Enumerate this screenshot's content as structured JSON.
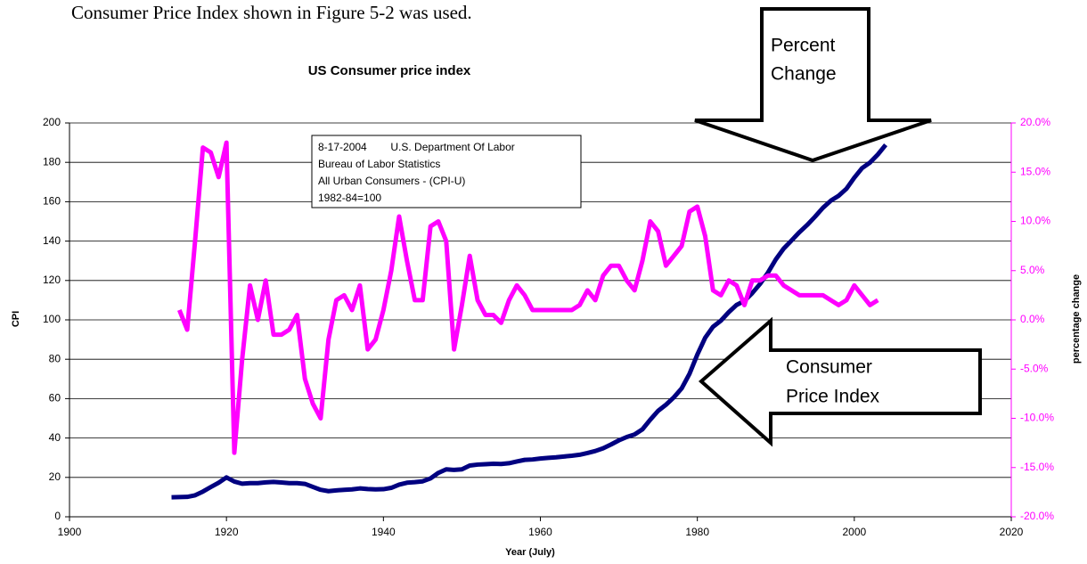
{
  "chart_data": {
    "type": "line",
    "note": "Consumer Price Index shown in Figure 5-2 was used.",
    "title": "US Consumer price index",
    "xlabel": "Year (July)",
    "ylabel": "CPI",
    "y2label": "percentage change",
    "source_lines": [
      "8-17-2004        U.S. Department Of Labor",
      "Bureau of Labor Statistics",
      "All Urban Consumers - (CPI-U)",
      "1982-84=100"
    ],
    "annotations": [
      {
        "lines": [
          "Percent",
          "Change"
        ]
      },
      {
        "lines": [
          "Consumer",
          "Price Index"
        ]
      }
    ],
    "xlim": [
      1900,
      2020
    ],
    "xticks": [
      1900,
      1920,
      1940,
      1960,
      1980,
      2000,
      2020
    ],
    "ylim": [
      0,
      200
    ],
    "yticks": [
      0,
      20,
      40,
      60,
      80,
      100,
      120,
      140,
      160,
      180,
      200
    ],
    "y2lim": [
      -20,
      20
    ],
    "y2ticks": [
      {
        "value": -20,
        "label": "-20.0%"
      },
      {
        "value": -15,
        "label": "-15.0%"
      },
      {
        "value": -10,
        "label": "-10.0%"
      },
      {
        "value": -5,
        "label": "-5.0%"
      },
      {
        "value": 0,
        "label": "0.0%"
      },
      {
        "value": 5,
        "label": "5.0%"
      },
      {
        "value": 10,
        "label": "10.0%"
      },
      {
        "value": 15,
        "label": "15.0%"
      },
      {
        "value": 20,
        "label": "20.0%"
      }
    ],
    "grid": true,
    "x": [
      1913,
      1914,
      1915,
      1916,
      1917,
      1918,
      1919,
      1920,
      1921,
      1922,
      1923,
      1924,
      1925,
      1926,
      1927,
      1928,
      1929,
      1930,
      1931,
      1932,
      1933,
      1934,
      1935,
      1936,
      1937,
      1938,
      1939,
      1940,
      1941,
      1942,
      1943,
      1944,
      1945,
      1946,
      1947,
      1948,
      1949,
      1950,
      1951,
      1952,
      1953,
      1954,
      1955,
      1956,
      1957,
      1958,
      1959,
      1960,
      1961,
      1962,
      1963,
      1964,
      1965,
      1966,
      1967,
      1968,
      1969,
      1970,
      1971,
      1972,
      1973,
      1974,
      1975,
      1976,
      1977,
      1978,
      1979,
      1980,
      1981,
      1982,
      1983,
      1984,
      1985,
      1986,
      1987,
      1988,
      1989,
      1990,
      1991,
      1992,
      1993,
      1994,
      1995,
      1996,
      1997,
      1998,
      1999,
      2000,
      2001,
      2002,
      2003,
      2004
    ],
    "series": [
      {
        "color": "#000080",
        "axis": "y",
        "values": [
          9.9,
          10.0,
          10.1,
          10.9,
          12.8,
          15.1,
          17.3,
          20.0,
          17.9,
          16.8,
          17.1,
          17.1,
          17.5,
          17.7,
          17.4,
          17.1,
          17.1,
          16.7,
          15.2,
          13.7,
          13.0,
          13.4,
          13.7,
          13.9,
          14.4,
          14.1,
          13.9,
          14.0,
          14.7,
          16.3,
          17.3,
          17.6,
          18.0,
          19.5,
          22.3,
          24.1,
          23.8,
          24.1,
          26.0,
          26.5,
          26.7,
          26.9,
          26.8,
          27.2,
          28.1,
          28.9,
          29.1,
          29.6,
          29.9,
          30.2,
          30.6,
          31.0,
          31.5,
          32.4,
          33.4,
          34.8,
          36.7,
          38.8,
          40.5,
          41.8,
          44.4,
          49.3,
          53.8,
          56.9,
          60.6,
          65.2,
          72.6,
          82.4,
          90.9,
          96.5,
          99.6,
          103.9,
          107.6,
          109.6,
          113.6,
          118.3,
          124.0,
          130.7,
          136.2,
          140.3,
          144.5,
          148.2,
          152.4,
          156.9,
          160.5,
          163.0,
          166.6,
          172.2,
          177.1,
          179.9,
          184.0,
          188.9
        ]
      },
      {
        "color": "#ff00ff",
        "axis": "y2",
        "values": [
          null,
          1,
          -1,
          8,
          17.5,
          17,
          14.5,
          18,
          -13.5,
          -4,
          3.5,
          0,
          4,
          -1.5,
          -1.5,
          -1,
          0.5,
          -6,
          -8.5,
          -10,
          -2,
          2,
          2.5,
          1,
          3.5,
          -3,
          -2,
          1,
          5,
          10.5,
          6,
          2,
          2,
          9.5,
          10,
          8,
          -3,
          1.5,
          6.5,
          2,
          0.5,
          0.5,
          -0.3,
          2,
          3.5,
          2.5,
          1,
          1,
          1,
          1,
          1,
          1,
          1.5,
          3,
          2,
          4.5,
          5.5,
          5.5,
          4,
          3,
          6,
          10,
          9,
          5.5,
          6.5,
          7.5,
          11,
          11.5,
          8.5,
          3,
          2.5,
          4,
          3.5,
          1.5,
          4,
          4,
          4.5,
          4.5,
          3.5,
          3,
          2.5,
          2.5,
          2.5,
          2.5,
          2,
          1.5,
          2,
          3.5,
          2.5,
          1.5,
          2,
          null
        ]
      }
    ]
  }
}
